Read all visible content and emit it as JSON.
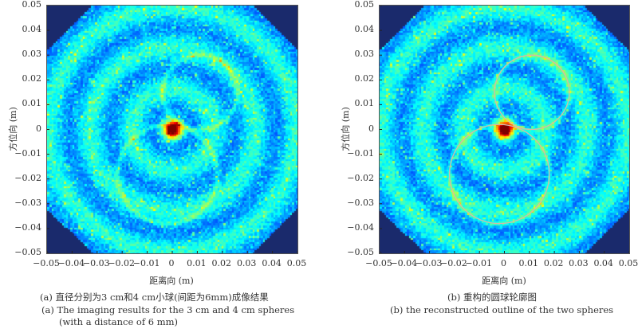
{
  "chart_data": [
    {
      "type": "heatmap",
      "panel": "a",
      "xlabel": "距离向 (m)",
      "ylabel": "方位向 (m)",
      "xlim": [
        -0.05,
        0.05
      ],
      "ylim": [
        -0.05,
        0.05
      ],
      "xticks": [
        "-0.05",
        "-0.04",
        "-0.03",
        "-0.02",
        "-0.01",
        "0",
        "0.01",
        "0.02",
        "0.03",
        "0.04",
        "0.05"
      ],
      "yticks": [
        "0.05",
        "0.04",
        "0.03",
        "0.02",
        "0.01",
        "0",
        "-0.01",
        "-0.02",
        "-0.03",
        "-0.04",
        "-0.05"
      ],
      "bright_spot": {
        "x": 0.0,
        "y": 0.0
      },
      "circles": [
        {
          "name": "3 cm sphere",
          "cx": 0.011,
          "cy": 0.015,
          "r": 0.015
        },
        {
          "name": "4 cm sphere",
          "cx": -0.002,
          "cy": -0.018,
          "r": 0.02
        }
      ],
      "overlay_outline": false,
      "caption_cn": "(a) 直径分别为3 cm和4 cm小球(间距为6mm)成像结果",
      "caption_en_1": "(a) The imaging results for the 3 cm and 4 cm spheres",
      "caption_en_2": "(with a distance of 6 mm)"
    },
    {
      "type": "heatmap",
      "panel": "b",
      "xlabel": "距离向 (m)",
      "ylabel": "方位向 (m)",
      "xlim": [
        -0.05,
        0.05
      ],
      "ylim": [
        -0.05,
        0.05
      ],
      "xticks": [
        "-0.05",
        "-0.04",
        "-0.03",
        "-0.02",
        "-0.01",
        "0",
        "0.01",
        "0.02",
        "0.03",
        "0.04",
        "0.05"
      ],
      "yticks": [
        "0.05",
        "0.04",
        "0.03",
        "0.02",
        "0.01",
        "0",
        "-0.01",
        "-0.02",
        "-0.03",
        "-0.04",
        "-0.05"
      ],
      "bright_spot": {
        "x": 0.0,
        "y": 0.0
      },
      "circles": [
        {
          "name": "3 cm sphere",
          "cx": 0.011,
          "cy": 0.015,
          "r": 0.015
        },
        {
          "name": "4 cm sphere",
          "cx": -0.002,
          "cy": -0.018,
          "r": 0.02
        }
      ],
      "overlay_outline": true,
      "caption_cn": "(b) 重构的圆球轮廓图",
      "caption_en_1": "(b) the reconstructed outline of the two spheres",
      "caption_en_2": ""
    }
  ],
  "colors": {
    "background": "#1a2a6c",
    "outline": "#d8b8a8"
  }
}
